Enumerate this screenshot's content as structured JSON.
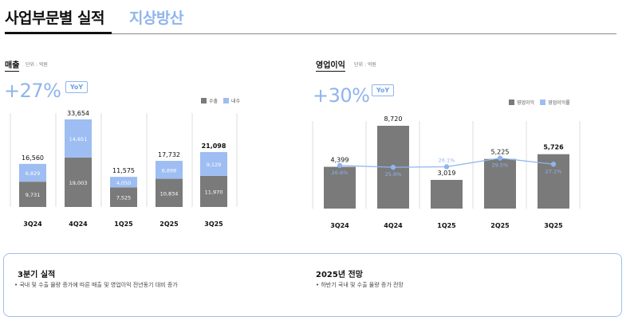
{
  "header": {
    "title": "사업부문별 실적",
    "subtitle": "지상방산"
  },
  "sales_section": {
    "label": "매출",
    "unit": "단위 : 억원",
    "growth": "+27%",
    "yoy": "YoY",
    "legend": [
      "수출",
      "내수"
    ]
  },
  "op_section": {
    "label": "영업이익",
    "unit": "단위 : 억원",
    "growth": "+30%",
    "yoy": "YoY",
    "legend": [
      "영업이익",
      "영업이익률"
    ]
  },
  "colors": {
    "export_bar": "#7a7a7a",
    "domestic_bar": "#9ebdf2",
    "margin_line": "#8fb4ee",
    "accent": "#8fb4ee"
  },
  "chart_data": [
    {
      "type": "bar",
      "stacked": true,
      "categories": [
        "3Q24",
        "4Q24",
        "1Q25",
        "2Q25",
        "3Q25"
      ],
      "series": [
        {
          "name": "수출",
          "values": [
            9731,
            19003,
            7525,
            10834,
            11970
          ]
        },
        {
          "name": "내수",
          "values": [
            6829,
            14651,
            4050,
            6898,
            9129
          ]
        }
      ],
      "totals": [
        "16,560",
        "33,654",
        "11,575",
        "17,732",
        "21,098"
      ],
      "seg_labels": {
        "수출": [
          "9,731",
          "19,003",
          "7,525",
          "10,834",
          "11,970"
        ],
        "내수": [
          "6,829",
          "14,651",
          "4,050",
          "6,898",
          "9,129"
        ]
      },
      "ylim": [
        0,
        36000
      ],
      "legend_position": "top-right"
    },
    {
      "type": "bar",
      "categories": [
        "3Q24",
        "4Q24",
        "1Q25",
        "2Q25",
        "3Q25"
      ],
      "series": [
        {
          "name": "영업이익",
          "values": [
            4399,
            8720,
            3019,
            5225,
            5726
          ]
        },
        {
          "name": "영업이익률",
          "values": [
            26.6,
            25.9,
            26.1,
            29.5,
            27.1
          ]
        }
      ],
      "value_labels": [
        "4,399",
        "8,720",
        "3,019",
        "5,225",
        "5,726"
      ],
      "margin_labels": [
        "26.6%",
        "25.9%",
        "26.1%",
        "29.5%",
        "27.1%"
      ],
      "ylim": [
        0,
        10000
      ],
      "legend_position": "top-right"
    }
  ],
  "summary": {
    "left_title": "3분기 실적",
    "left_text": "• 국내 및 수출 물량 증가에 따른 매출 및 영업이익 전년동기 대비 증가",
    "right_title": "2025년 전망",
    "right_text": "• 하반기 국내 및 수출 물량 증가 전망"
  }
}
